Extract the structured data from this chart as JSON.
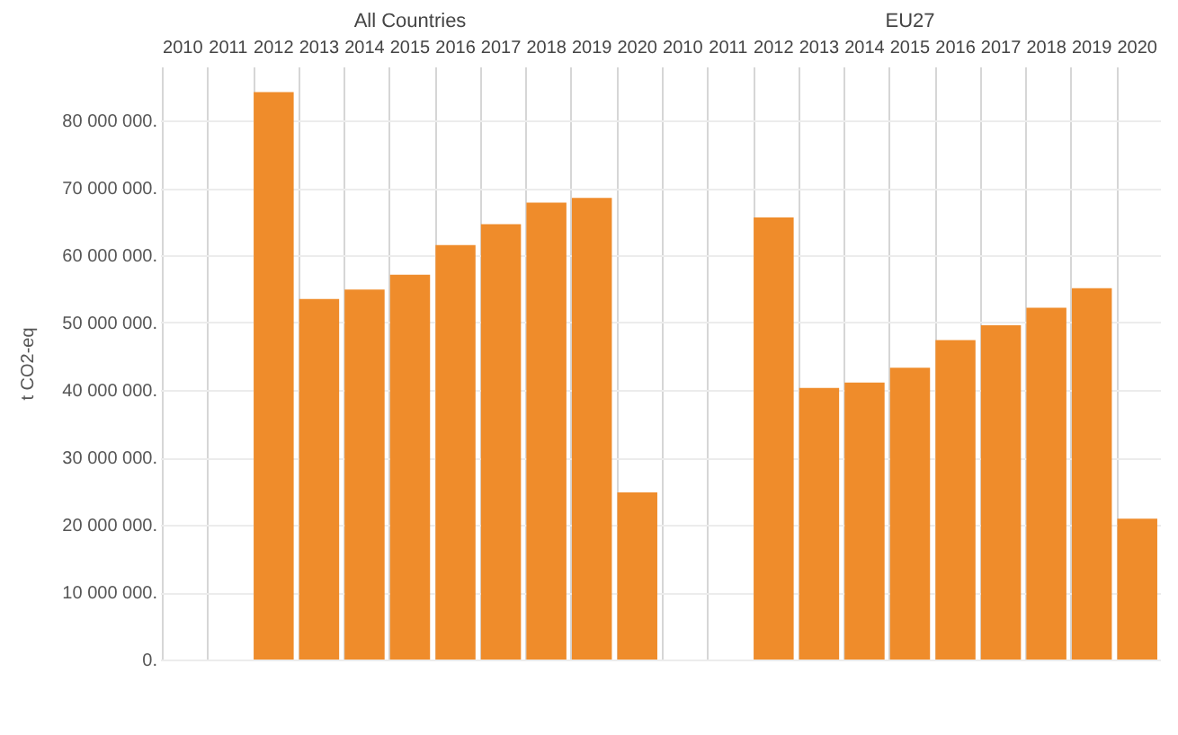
{
  "chart_data": [
    {
      "type": "bar",
      "title": "All Countries",
      "ylabel": "t CO2-eq",
      "categories": [
        "2010",
        "2011",
        "2012",
        "2013",
        "2014",
        "2015",
        "2016",
        "2017",
        "2018",
        "2019",
        "2020"
      ],
      "series": [
        {
          "color": "#ef8c2b",
          "values": [
            null,
            null,
            84200000,
            53500000,
            54900000,
            57100000,
            61500000,
            64600000,
            67800000,
            68500000,
            24800000
          ]
        }
      ],
      "ylim": [
        0,
        88000000
      ],
      "yticks": [
        {
          "value": 0,
          "label": "0."
        },
        {
          "value": 10000000,
          "label": "10 000 000."
        },
        {
          "value": 20000000,
          "label": "20 000 000."
        },
        {
          "value": 30000000,
          "label": "30 000 000."
        },
        {
          "value": 40000000,
          "label": "40 000 000."
        },
        {
          "value": 50000000,
          "label": "50 000 000."
        },
        {
          "value": 60000000,
          "label": "60 000 000."
        },
        {
          "value": 70000000,
          "label": "70 000 000."
        },
        {
          "value": 80000000,
          "label": "80 000 000."
        }
      ],
      "grid": true
    },
    {
      "type": "bar",
      "title": "EU27",
      "categories": [
        "2010",
        "2011",
        "2012",
        "2013",
        "2014",
        "2015",
        "2016",
        "2017",
        "2018",
        "2019",
        "2020"
      ],
      "series": [
        {
          "color": "#ef8c2b",
          "values": [
            null,
            null,
            65600000,
            40300000,
            41100000,
            43300000,
            47400000,
            49600000,
            52200000,
            55100000,
            20900000
          ]
        }
      ],
      "ylim": [
        0,
        88000000
      ],
      "yticks": [
        0,
        10000000,
        20000000,
        30000000,
        40000000,
        50000000,
        60000000,
        70000000,
        80000000
      ],
      "grid": true,
      "tick_labels": "x"
    }
  ]
}
